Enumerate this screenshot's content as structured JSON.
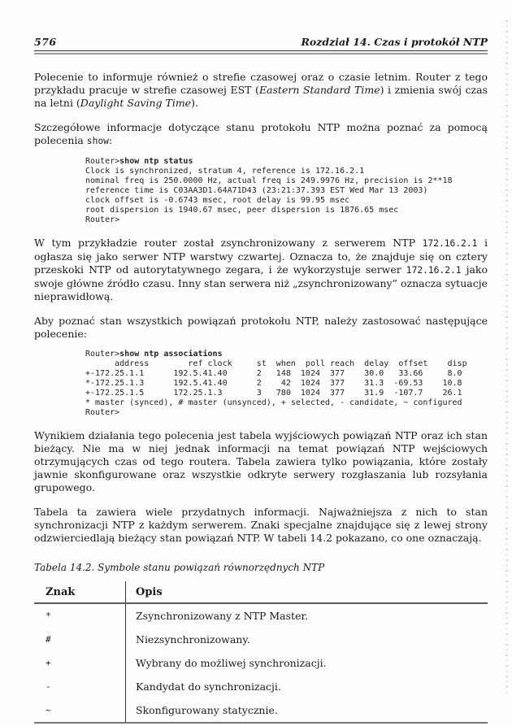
{
  "palette": {
    "paper": "#fdfdfb",
    "ink": "#1b1b1b",
    "rule_gray": "#9c9c9c"
  },
  "header": {
    "page_number": "576",
    "chapter_title": "Rozdział 14. Czas i protokół NTP"
  },
  "paragraphs": [
    {
      "segments": [
        {
          "t": "Polecenie to informuje również o strefie czasowej oraz o czasie letnim. Router z tego przykładu pracuje w strefie czasowej EST ("
        },
        {
          "t": "Eastern Standard Time",
          "i": true
        },
        {
          "t": ") i zmienia swój czas na letni ("
        },
        {
          "t": "Daylight Saving Time",
          "i": true
        },
        {
          "t": ")."
        }
      ]
    },
    {
      "segments": [
        {
          "t": "Szczegółowe informacje dotyczące stanu protokołu NTP można poznać za pomocą polecenia "
        },
        {
          "t": "show",
          "mono": true
        },
        {
          "t": ":"
        }
      ]
    },
    {
      "segments": [
        {
          "t": "W tym przykładzie router został zsynchronizowany z serwerem NTP "
        },
        {
          "t": "172.16.2.1",
          "mono": true
        },
        {
          "t": " i ogłasza się jako serwer NTP warstwy czwartej. Oznacza to, że znajduje się on cztery przeskoki NTP od autorytatywnego zegara, i że wykorzystuje serwer "
        },
        {
          "t": "172.16.2.1",
          "mono": true
        },
        {
          "t": " jako swoje główne źródło czasu. Inny stan serwera niż „zsynchronizowany” oznacza sytuacje nieprawidłową."
        }
      ]
    },
    {
      "segments": [
        {
          "t": "Aby poznać stan wszystkich powiązań protokołu NTP, należy zastosować następujące polecenie:"
        }
      ]
    },
    {
      "segments": [
        {
          "t": "Wynikiem działania tego polecenia jest tabela wyjściowych powiązań NTP oraz ich stan bieżący. Nie ma w niej jednak informacji na temat powiązań NTP wejściowych otrzymujących czas od tego routera. Tabela zawiera tylko powiązania, które zostały jawnie skonfigurowane oraz wszystkie odkryte serwery rozgłaszania lub rozsyłania grupowego."
        }
      ]
    },
    {
      "segments": [
        {
          "t": "Tabela ta zawiera wiele przydatnych informacji. Najważniejsza z nich to stan synchronizacji NTP z każdym serwerem. Znaki specjalne znajdujące się z lewej strony odzwierciedlają bieżący stan powiązań NTP. W tabeli 14.2 pokazano, co one oznaczają."
        }
      ]
    }
  ],
  "code_blocks": [
    {
      "name": "show-ntp-status",
      "lines": [
        [
          {
            "t": "Router>"
          },
          {
            "t": "show ntp status",
            "b": true
          }
        ],
        [
          {
            "t": "Clock is synchronized, stratum 4, reference is 172.16.2.1"
          }
        ],
        [
          {
            "t": "nominal freq is 250.0000 Hz, actual freq is 249.9976 Hz, precision is 2**18"
          }
        ],
        [
          {
            "t": "reference time is C03AA3D1.64A71D43 (23:21:37.393 EST Wed Mar 13 2003)"
          }
        ],
        [
          {
            "t": "clock offset is -0.6743 msec, root delay is 99.95 msec"
          }
        ],
        [
          {
            "t": "root dispersion is 1940.67 msec, peer dispersion is 1876.65 msec"
          }
        ],
        [
          {
            "t": "Router>"
          }
        ]
      ]
    },
    {
      "name": "show-ntp-associations",
      "lines": [
        [
          {
            "t": "Router>"
          },
          {
            "t": "show ntp associations",
            "b": true
          }
        ],
        [
          {
            "t": "      address        ref clock     st  when  poll reach  delay  offset    disp"
          }
        ],
        [
          {
            "t": "+-172.25.1.1      192.5.41.40      2   148  1024  377    30.0   33.66     8.0"
          }
        ],
        [
          {
            "t": "*-172.25.1.3      192.5.41.40      2    42  1024  377    31.3  -69.53    10.8"
          }
        ],
        [
          {
            "t": "+-172.25.1.5      172.25.1.3       3   780  1024  377    31.9  -107.7    26.1"
          }
        ],
        [
          {
            "t": "* master (synced), # master (unsynced), + selected, - candidate, ~ configured"
          }
        ],
        [
          {
            "t": "Router>"
          }
        ]
      ]
    }
  ],
  "table": {
    "caption_segments": [
      {
        "t": "Tabela 14.2. Symbole stanu powiązań równorzędnych NTP",
        "i": true
      }
    ],
    "columns": [
      "Znak",
      "Opis"
    ],
    "rows": [
      {
        "znak": "*",
        "opis": "Zsynchronizowany z NTP Master."
      },
      {
        "znak": "#",
        "opis": "Niezsynchronizowany."
      },
      {
        "znak": "+",
        "opis": "Wybrany do możliwej synchronizacji."
      },
      {
        "znak": "-",
        "opis": "Kandydat do synchronizacji."
      },
      {
        "znak": "~",
        "opis": "Skonfigurowany statycznie."
      }
    ]
  }
}
